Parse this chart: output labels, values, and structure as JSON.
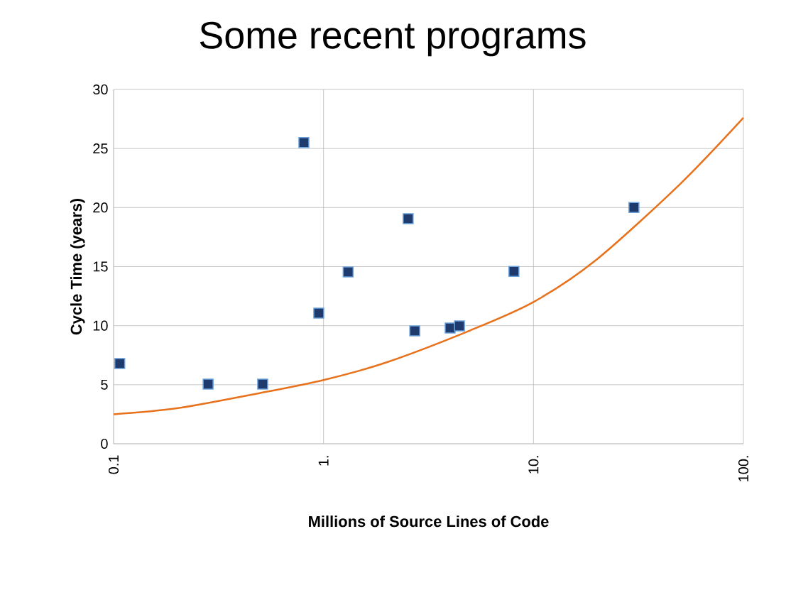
{
  "chart_data": {
    "type": "scatter",
    "title": "Some recent programs",
    "xlabel": "Millions of Source Lines of Code",
    "ylabel": "Cycle Time (years)",
    "log": "x",
    "grid": true,
    "xlim": [
      0.1,
      100
    ],
    "xticks": [
      0.1,
      {
        "value": 1,
        "label": "1."
      },
      {
        "value": 10,
        "label": "10."
      },
      {
        "value": 100,
        "label": "100."
      }
    ],
    "ylim": [
      0,
      30
    ],
    "yticks": [
      0,
      5,
      10,
      15,
      20,
      25,
      30
    ],
    "series": [
      {
        "color": "#1f3b6e",
        "marker": "square",
        "x": [
          0.107,
          0.282,
          0.513,
          0.806,
          0.949,
          1.31,
          2.53,
          2.72,
          4.01,
          4.44,
          8.07,
          30.1
        ],
        "values": [
          6.8,
          5.05,
          5.05,
          25.5,
          11.06,
          14.55,
          19.06,
          9.56,
          9.8,
          9.98,
          14.6,
          20.0
        ]
      },
      {
        "type": "line",
        "color": "#e8711c",
        "marker": "none",
        "line_style": "solid",
        "x": [
          0.1,
          0.2,
          0.5,
          1,
          2,
          5,
          10,
          20,
          50,
          100
        ],
        "values": [
          2.5,
          3.0,
          4.3,
          5.4,
          6.9,
          9.6,
          12.0,
          15.6,
          22.0,
          27.6
        ]
      }
    ]
  }
}
